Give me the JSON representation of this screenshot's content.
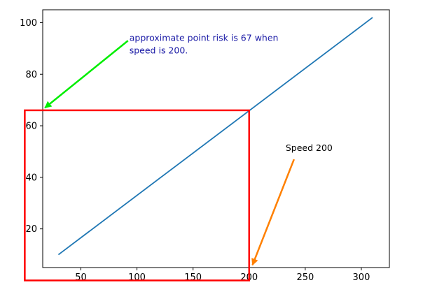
{
  "chart_data": {
    "type": "line",
    "title": "",
    "xlabel": "",
    "ylabel": "",
    "xlim": [
      16,
      325
    ],
    "ylim": [
      5,
      105
    ],
    "xticks": [
      50,
      100,
      150,
      200,
      250,
      300
    ],
    "yticks": [
      20,
      40,
      60,
      80,
      100
    ],
    "grid": false,
    "series": [
      {
        "color": "#1f77b4",
        "x": [
          30,
          310
        ],
        "y": [
          10,
          102
        ]
      }
    ],
    "highlight_box": {
      "x": [
        0,
        200
      ],
      "y": [
        0,
        66
      ],
      "color": "#ff0000"
    },
    "annotations": [
      {
        "text_lines": [
          "approximate point risk is 67 when",
          "speed is 200."
        ],
        "text_color": "#1a1aa6",
        "arrow_color": "#00ee00",
        "arrow_from": [
          92,
          93
        ],
        "arrow_to": [
          18,
          67
        ]
      },
      {
        "text_lines": [
          "Speed 200"
        ],
        "text_color": "#000000",
        "arrow_color": "#ff8000",
        "arrow_from": [
          240,
          47
        ],
        "arrow_to": [
          203,
          6
        ]
      }
    ]
  }
}
